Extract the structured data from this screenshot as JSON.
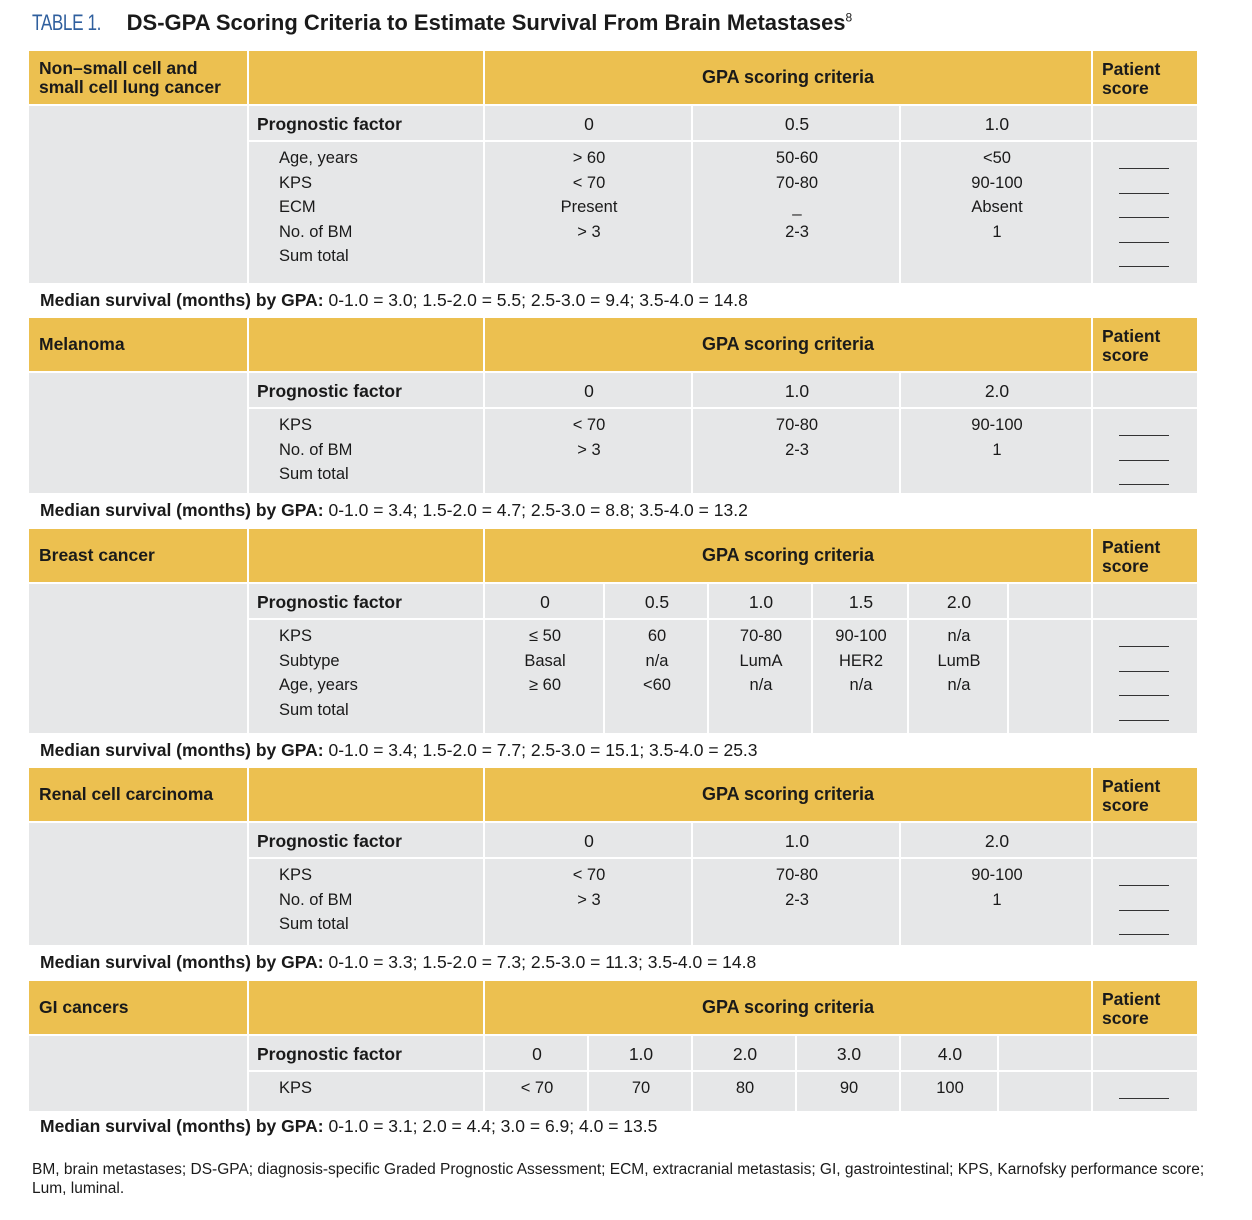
{
  "title": {
    "label": "TABLE 1.",
    "text": "DS-GPA Scoring Criteria to Estimate Survival From Brain Metastases",
    "ref": "8"
  },
  "common": {
    "gpa": "GPA scoring criteria",
    "patient_score": "Patient score",
    "prognostic_factor": "Prognostic factor",
    "median_prefix": "Median survival (months) by GPA:"
  },
  "sections": [
    {
      "name": "Non–small cell and small cell lung cancer",
      "scores": [
        "0",
        "0.5",
        "1.0"
      ],
      "rows": [
        {
          "factor": "Age, years",
          "values": [
            "> 60",
            "50-60",
            "<50"
          ]
        },
        {
          "factor": "KPS",
          "values": [
            "< 70",
            "70-80",
            "90-100"
          ]
        },
        {
          "factor": "ECM",
          "values": [
            "Present",
            "_",
            "Absent"
          ]
        },
        {
          "factor": "No. of BM",
          "values": [
            "> 3",
            "2-3",
            "1"
          ]
        },
        {
          "factor": "Sum total",
          "values": [
            "",
            "",
            ""
          ]
        }
      ],
      "median": "0-1.0 = 3.0; 1.5-2.0 = 5.5; 2.5-3.0 = 9.4; 3.5-4.0 = 14.8"
    },
    {
      "name": "Melanoma",
      "scores": [
        "0",
        "1.0",
        "2.0"
      ],
      "rows": [
        {
          "factor": "KPS",
          "values": [
            "< 70",
            "70-80",
            "90-100"
          ]
        },
        {
          "factor": "No. of BM",
          "values": [
            "> 3",
            "2-3",
            "1"
          ]
        },
        {
          "factor": "Sum total",
          "values": [
            "",
            "",
            ""
          ]
        }
      ],
      "median": "0-1.0 = 3.4; 1.5-2.0 = 4.7; 2.5-3.0 = 8.8; 3.5-4.0 = 13.2"
    },
    {
      "name": "Breast cancer",
      "scores": [
        "0",
        "0.5",
        "1.0",
        "1.5",
        "2.0"
      ],
      "rows": [
        {
          "factor": "KPS",
          "values": [
            "≤ 50",
            "60",
            "70-80",
            "90-100",
            "n/a"
          ]
        },
        {
          "factor": "Subtype",
          "values": [
            "Basal",
            "n/a",
            "LumA",
            "HER2",
            "LumB"
          ]
        },
        {
          "factor": "Age, years",
          "values": [
            "≥ 60",
            "<60",
            "n/a",
            "n/a",
            "n/a"
          ]
        },
        {
          "factor": "Sum total",
          "values": [
            "",
            "",
            "",
            "",
            ""
          ]
        }
      ],
      "median": "0-1.0 = 3.4; 1.5-2.0 = 7.7; 2.5-3.0 = 15.1; 3.5-4.0 = 25.3"
    },
    {
      "name": "Renal cell carcinoma",
      "scores": [
        "0",
        "1.0",
        "2.0"
      ],
      "rows": [
        {
          "factor": "KPS",
          "values": [
            "< 70",
            "70-80",
            "90-100"
          ]
        },
        {
          "factor": "No. of BM",
          "values": [
            "> 3",
            "2-3",
            "1"
          ]
        },
        {
          "factor": "Sum total",
          "values": [
            "",
            "",
            ""
          ]
        }
      ],
      "median": "0-1.0 = 3.3; 1.5-2.0 = 7.3; 2.5-3.0 = 11.3; 3.5-4.0 = 14.8"
    },
    {
      "name": "GI cancers",
      "scores": [
        "0",
        "1.0",
        "2.0",
        "3.0",
        "4.0"
      ],
      "rows": [
        {
          "factor": "KPS",
          "values": [
            "< 70",
            "70",
            "80",
            "90",
            "100"
          ]
        }
      ],
      "median": "0-1.0 = 3.1; 2.0 = 4.4; 3.0 = 6.9; 4.0 = 13.5"
    }
  ],
  "footnote": "BM, brain metastases; DS-GPA; diagnosis-specific Graded Prognostic Assessment; ECM, extracranial metastasis; GI, gastrointestinal; KPS, Karnofsky performance score; Lum, luminal."
}
